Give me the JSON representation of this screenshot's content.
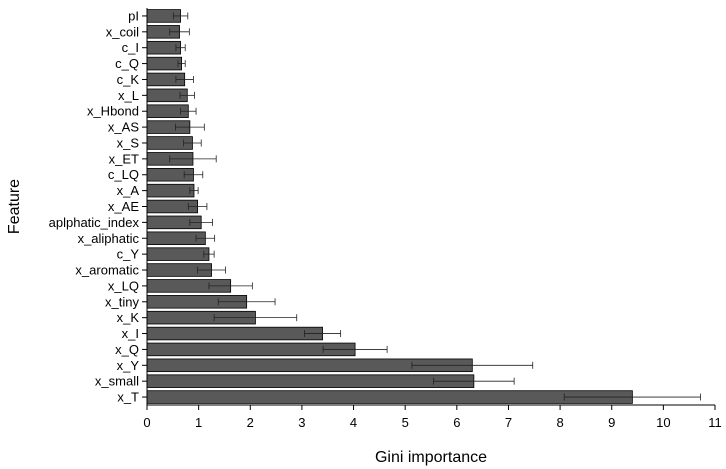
{
  "chart_data": {
    "type": "bar",
    "orientation": "horizontal",
    "xlabel": "Gini importance",
    "ylabel": "Feature",
    "xlim": [
      0,
      11
    ],
    "xticks": [
      0,
      1,
      2,
      3,
      4,
      5,
      6,
      7,
      8,
      9,
      10,
      11
    ],
    "grid": false,
    "bar_color": "#595959",
    "categories": [
      "pI",
      "x_coil",
      "c_I",
      "c_Q",
      "c_K",
      "x_L",
      "x_Hbond",
      "x_AS",
      "x_S",
      "x_ET",
      "c_LQ",
      "x_A",
      "x_AE",
      "aplphatic_index",
      "x_aliphatic",
      "c_Y",
      "x_aromatic",
      "x_LQ",
      "x_tiny",
      "x_K",
      "x_I",
      "x_Q",
      "x_Y",
      "x_small",
      "x_T"
    ],
    "values": [
      0.65,
      0.63,
      0.65,
      0.67,
      0.73,
      0.78,
      0.8,
      0.83,
      0.88,
      0.89,
      0.9,
      0.91,
      0.98,
      1.05,
      1.13,
      1.2,
      1.25,
      1.62,
      1.93,
      2.1,
      3.4,
      4.03,
      6.3,
      6.33,
      9.4
    ],
    "errors": [
      0.14,
      0.19,
      0.09,
      0.07,
      0.17,
      0.14,
      0.15,
      0.28,
      0.17,
      0.45,
      0.18,
      0.08,
      0.18,
      0.22,
      0.18,
      0.1,
      0.27,
      0.42,
      0.55,
      0.8,
      0.35,
      0.62,
      1.17,
      0.78,
      1.32
    ]
  }
}
